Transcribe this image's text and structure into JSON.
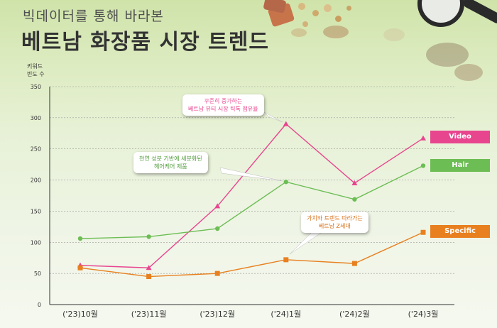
{
  "header": {
    "subtitle": "빅데이터를 통해 바라본",
    "title": "베트남 화장품 시장 트렌드"
  },
  "y_axis_caption": [
    "키워드",
    "빈도 수"
  ],
  "callouts": {
    "video": [
      "꾸준히 증가하는",
      "베트남 뷰티 시장 틱톡 점유율"
    ],
    "hair": [
      "천연 성분 기반에 세분화된",
      "헤어케어 제품"
    ],
    "specific": [
      "가치와 트렌드 따라가는",
      "베트남 Z세대"
    ]
  },
  "colors": {
    "video": "#e8458f",
    "hair": "#6cbd54",
    "specific": "#e8801f"
  },
  "chart_data": {
    "type": "line",
    "categories": [
      "('23)10월",
      "('23)11월",
      "('23)12월",
      "('24)1월",
      "('24)2월",
      "('24)3월"
    ],
    "ylim": [
      0,
      350
    ],
    "yticks": [
      0,
      50,
      100,
      150,
      200,
      250,
      300,
      350
    ],
    "ylabel": "키워드 빈도 수",
    "series": [
      {
        "name": "Video",
        "values": [
          63,
          59,
          158,
          290,
          195,
          267
        ]
      },
      {
        "name": "Hair",
        "values": [
          106,
          109,
          122,
          197,
          169,
          223
        ]
      },
      {
        "name": "Specific",
        "values": [
          59,
          45,
          50,
          72,
          66,
          116
        ]
      }
    ]
  }
}
